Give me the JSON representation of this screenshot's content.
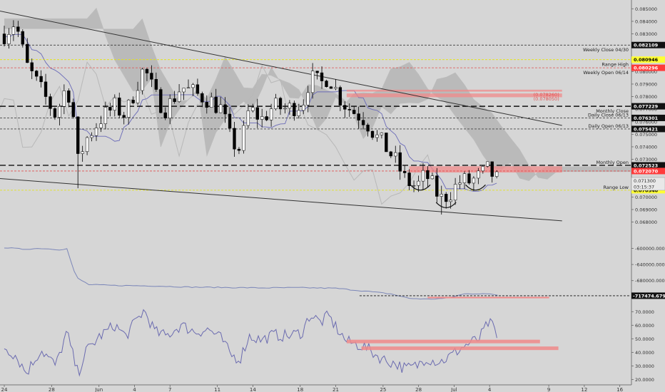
{
  "chart_data": [
    {
      "type": "candlestick",
      "panel": "price",
      "title": "",
      "ylim": [
        0.0665,
        0.0857
      ],
      "y_ticks": [
        0.085,
        0.084,
        0.083,
        0.082,
        0.081,
        0.08,
        0.079,
        0.078,
        0.077,
        0.076,
        0.075,
        0.074,
        0.073,
        0.072,
        0.071,
        0.07,
        0.069,
        0.068
      ],
      "y_tick_labels": [
        "0.085000",
        "0.084000",
        "0.083000",
        "0.082000",
        "0.081000",
        "0.080000",
        "0.079000",
        "0.078000",
        "0.077000",
        "0.076000",
        "0.075000",
        "0.074000",
        "0.073000",
        "0.072000",
        "0.071000",
        "0.070000",
        "0.069000",
        "0.068000"
      ],
      "close_anchors": [
        {
          "d": 0,
          "y": 0.083
        },
        {
          "d": 0.6,
          "y": 0.084
        },
        {
          "d": 1.2,
          "y": 0.0805
        },
        {
          "d": 2,
          "y": 0.0785
        },
        {
          "d": 2.8,
          "y": 0.0765
        },
        {
          "d": 3.4,
          "y": 0.079
        },
        {
          "d": 3.8,
          "y": 0.076
        },
        {
          "d": 4,
          "y": 0.0728
        },
        {
          "d": 4.4,
          "y": 0.0745
        },
        {
          "d": 5.2,
          "y": 0.0762
        },
        {
          "d": 6,
          "y": 0.0772
        },
        {
          "d": 6.6,
          "y": 0.0765
        },
        {
          "d": 7.2,
          "y": 0.079
        },
        {
          "d": 7.6,
          "y": 0.0803
        },
        {
          "d": 8.2,
          "y": 0.078
        },
        {
          "d": 8.8,
          "y": 0.077
        },
        {
          "d": 9.6,
          "y": 0.0788
        },
        {
          "d": 10.4,
          "y": 0.0782
        },
        {
          "d": 11.1,
          "y": 0.0778
        },
        {
          "d": 11.8,
          "y": 0.077
        },
        {
          "d": 12.3,
          "y": 0.0745
        },
        {
          "d": 12.8,
          "y": 0.0738
        },
        {
          "d": 13.3,
          "y": 0.077
        },
        {
          "d": 14,
          "y": 0.0762
        },
        {
          "d": 14.6,
          "y": 0.0772
        },
        {
          "d": 15.4,
          "y": 0.077
        },
        {
          "d": 16.2,
          "y": 0.0775
        },
        {
          "d": 16.6,
          "y": 0.0795
        },
        {
          "d": 17.2,
          "y": 0.079
        },
        {
          "d": 17.6,
          "y": 0.0797
        },
        {
          "d": 18.2,
          "y": 0.078
        },
        {
          "d": 18.6,
          "y": 0.0772
        },
        {
          "d": 19.6,
          "y": 0.0762
        },
        {
          "d": 20.2,
          "y": 0.0748
        },
        {
          "d": 20.7,
          "y": 0.074
        },
        {
          "d": 21.2,
          "y": 0.073
        },
        {
          "d": 21.8,
          "y": 0.0713
        },
        {
          "d": 22.4,
          "y": 0.0708
        },
        {
          "d": 22.9,
          "y": 0.0718
        },
        {
          "d": 23.3,
          "y": 0.0708
        },
        {
          "d": 23.7,
          "y": 0.0698
        },
        {
          "d": 24.2,
          "y": 0.0703
        },
        {
          "d": 24.8,
          "y": 0.0713
        },
        {
          "d": 25.3,
          "y": 0.0712
        },
        {
          "d": 25.8,
          "y": 0.0716
        },
        {
          "d": 26.3,
          "y": 0.0722
        },
        {
          "d": 26.6,
          "y": 0.0716
        },
        {
          "d": 26.8,
          "y": 0.0713
        }
      ],
      "lows_marked": [
        {
          "d": 4,
          "y": 0.0707
        },
        {
          "d": 23.8,
          "y": 0.0686
        }
      ],
      "trendlines": [
        {
          "d1": -0.5,
          "y1": 0.0849,
          "d2": 30.3,
          "y2": 0.0757
        },
        {
          "d1": -0.5,
          "y1": 0.0715,
          "d2": 30.3,
          "y2": 0.0681
        }
      ],
      "horizontal_levels": [
        {
          "value": 0.082109,
          "value_label": "0.082109",
          "label": "Weekly Close 04/30",
          "style": "dash",
          "color": "#222222",
          "tag_bg": "#111111",
          "tag_fg": "#ffffff"
        },
        {
          "value": 0.080946,
          "value_label": "0.080946",
          "label": "Range High",
          "style": "dash",
          "color": "#e6e600",
          "tag_bg": "#ffff33",
          "tag_fg": "#000000"
        },
        {
          "value": 0.080296,
          "value_label": "0.080296",
          "label": "Weekly Open 06/14",
          "style": "dash",
          "color": "#e05050",
          "tag_bg": "#ff3b3b",
          "tag_fg": "#ffffff"
        },
        {
          "value": 0.077229,
          "value_label": "0.077229",
          "label": "Monthly Close",
          "style": "bigdash",
          "color": "#111111",
          "tag_bg": "#111111",
          "tag_fg": "#ffffff"
        },
        {
          "value": 0.076301,
          "value_label": "0.076301",
          "label": "Daily Close 06/13",
          "style": "dash",
          "color": "#444444",
          "tag_bg": "#111111",
          "tag_fg": "#ffffff"
        },
        {
          "value": 0.075421,
          "value_label": "0.075421",
          "label": "Daily Open 06/13",
          "style": "dash",
          "color": "#444444",
          "tag_bg": "#111111",
          "tag_fg": "#ffffff"
        },
        {
          "value": 0.072523,
          "value_label": "0.072523",
          "label": "Monthly Open",
          "style": "bigdash",
          "color": "#111111",
          "tag_bg": "#111111",
          "tag_fg": "#ffffff"
        },
        {
          "value": 0.07207,
          "value_label": "0.072070",
          "label": "",
          "style": "dash",
          "color": "#e05050",
          "tag_bg": "#ff3b3b",
          "tag_fg": "#ffffff"
        },
        {
          "value": 0.07054,
          "value_label": "0.070540",
          "label": "Range Low",
          "style": "dash",
          "color": "#e6e600",
          "tag_bg": "#ffff33",
          "tag_fg": "#000000"
        }
      ],
      "last_price": {
        "value": 0.0713,
        "label": "0.071300",
        "countdown": "03:15:37"
      },
      "zones": [
        {
          "d1": 18.6,
          "d2": 30.3,
          "y1": 0.07795,
          "y2": 0.07825
        },
        {
          "d1": 18.6,
          "d2": 30.3,
          "y1": 0.0784,
          "y2": 0.07855
        },
        {
          "d1": 22.0,
          "d2": 30.3,
          "y1": 0.07195,
          "y2": 0.07245
        }
      ],
      "zone_labels": [
        "(0.078260)",
        "(0.078050)"
      ]
    },
    {
      "type": "line",
      "panel": "indicator",
      "title": "",
      "ylim": [
        -730000,
        -585000
      ],
      "y_ticks": [
        -600000,
        -640000,
        -680000
      ],
      "y_tick_labels": [
        "-600000.0000",
        "-640000.0000",
        "-680000.0000"
      ],
      "current": {
        "value": -717474.6793,
        "label": "-717474.6793"
      },
      "series": [
        {
          "x": [
            0,
            1,
            2,
            3,
            3.4,
            3.9,
            4.6,
            6,
            8,
            10,
            12,
            14,
            16,
            18,
            19.6,
            21,
            22,
            23,
            24,
            25,
            26,
            26.8
          ],
          "y": [
            -598000,
            -602000,
            -600000,
            -603000,
            -601000,
            -672000,
            -690000,
            -692000,
            -693000,
            -696000,
            -697000,
            -698000,
            -697500,
            -699000,
            -706000,
            -713000,
            -724000,
            -726000,
            -724000,
            -713000,
            -712000,
            -716000
          ]
        }
      ],
      "guide_level": -717474,
      "zone": {
        "d1": 23.0,
        "d2": 29.6,
        "value": -722000
      }
    },
    {
      "type": "line",
      "panel": "rsi",
      "title": "",
      "ylim": [
        16,
        77
      ],
      "y_ticks": [
        70,
        60,
        50,
        40,
        30,
        20
      ],
      "y_tick_labels": [
        "70.0000",
        "60.0000",
        "50.0000",
        "40.0000",
        "30.0000",
        "20.0000"
      ],
      "series": [
        {
          "x": [
            0,
            0.6,
            1.2,
            2,
            2.8,
            3.4,
            3.8,
            4,
            4.4,
            5.2,
            6,
            6.6,
            7.2,
            7.6,
            8.2,
            8.8,
            9.6,
            10.4,
            11.1,
            11.8,
            12.3,
            12.8,
            13.3,
            14,
            14.6,
            15.4,
            16.2,
            16.6,
            17.2,
            17.6,
            18.2,
            18.6,
            19.6,
            20.2,
            20.7,
            21.2,
            21.8,
            22.4,
            22.9,
            23.3,
            23.7,
            24.2,
            24.8,
            25.3,
            25.8,
            26.3,
            26.6,
            26.8
          ],
          "y": [
            44,
            38,
            25,
            42,
            30,
            55,
            34,
            24,
            40,
            52,
            60,
            52,
            64,
            71,
            55,
            52,
            60,
            55,
            57,
            50,
            38,
            35,
            52,
            49,
            53,
            52,
            55,
            68,
            62,
            67,
            55,
            48,
            44,
            38,
            34,
            32,
            28,
            30,
            36,
            34,
            33,
            37,
            43,
            47,
            50,
            62,
            58,
            48
          ]
        }
      ],
      "zones": [
        {
          "d1": 18.6,
          "d2": 29.1,
          "value": 48
        },
        {
          "d1": 19.4,
          "d2": 30.1,
          "value": 43
        }
      ]
    }
  ],
  "x_axis": {
    "day_ticks": [
      {
        "d": 0,
        "label": "24"
      },
      {
        "d": 4,
        "label": "28"
      },
      {
        "d": 8,
        "label": "Jun"
      },
      {
        "d": 11,
        "label": "4"
      },
      {
        "d": 14,
        "label": "7"
      },
      {
        "d": 18,
        "label": "11"
      },
      {
        "d": 21,
        "label": "14"
      },
      {
        "d": 25,
        "label": "18"
      },
      {
        "d": 28,
        "label": "21"
      },
      {
        "d": 32,
        "label": "25"
      },
      {
        "d": 35,
        "label": "28"
      },
      {
        "d": 38,
        "label": "Jul"
      },
      {
        "d": 41,
        "label": "4"
      },
      {
        "d": 46,
        "label": "9"
      },
      {
        "d": 49,
        "label": "12"
      },
      {
        "d": 52,
        "label": "16"
      }
    ]
  },
  "colors": {
    "background": "#d6d6d6",
    "candle_up": "#ffffff",
    "candle_down": "#000000",
    "rsi_line": "#6b6bb0",
    "indicator_line": "#7b86b8",
    "cloud_dark": "#9a9a9a",
    "cloud_light": "#e4e4e4",
    "trendline": "#333333",
    "zone_red": "#f08a8a"
  }
}
